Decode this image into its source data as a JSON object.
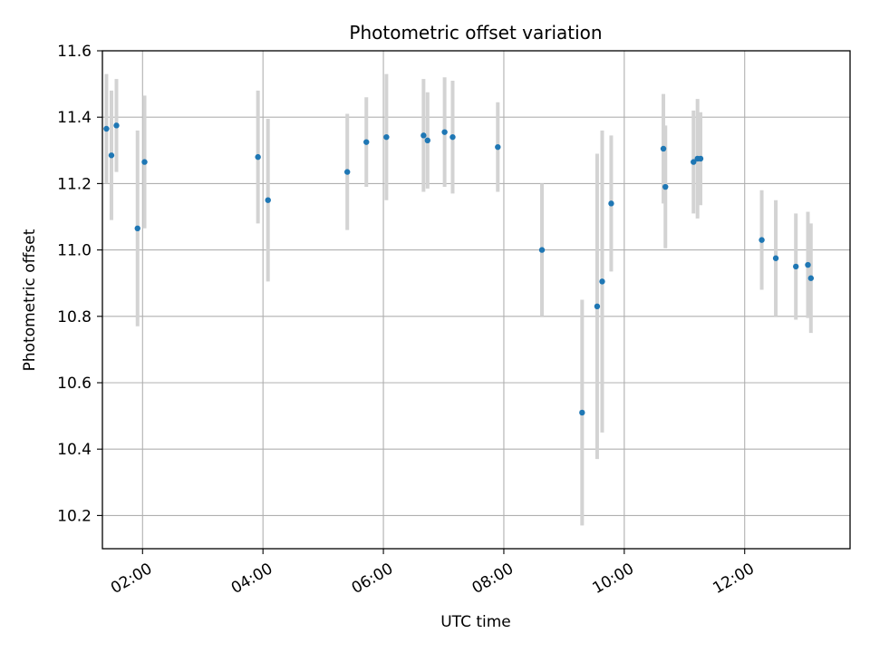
{
  "chart_data": {
    "type": "scatter",
    "title": "Photometric offset variation",
    "xlabel": "UTC time",
    "ylabel": "Photometric offset",
    "x_axis": "time",
    "xlim": [
      "01:20",
      "13:45"
    ],
    "ylim": [
      10.1,
      11.6
    ],
    "x_ticks": [
      "02:00",
      "04:00",
      "06:00",
      "08:00",
      "10:00",
      "12:00"
    ],
    "y_ticks": [
      10.2,
      10.4,
      10.6,
      10.8,
      11.0,
      11.2,
      11.4,
      11.6
    ],
    "y_tick_labels": [
      "10.2",
      "10.4",
      "10.6",
      "10.8",
      "11.0",
      "11.2",
      "11.4",
      "11.6"
    ],
    "grid": true,
    "point_color": "#1f77b4",
    "errorbar_color": "#d3d3d3",
    "points": [
      {
        "t": "01:24",
        "y": 11.365,
        "yerr": 0.165
      },
      {
        "t": "01:29",
        "y": 11.285,
        "yerr": 0.195
      },
      {
        "t": "01:34",
        "y": 11.375,
        "yerr": 0.14
      },
      {
        "t": "01:55",
        "y": 11.065,
        "yerr": 0.295
      },
      {
        "t": "02:02",
        "y": 11.265,
        "yerr": 0.2
      },
      {
        "t": "03:55",
        "y": 11.28,
        "yerr": 0.2
      },
      {
        "t": "04:05",
        "y": 11.15,
        "yerr": 0.245
      },
      {
        "t": "05:24",
        "y": 11.235,
        "yerr": 0.175
      },
      {
        "t": "05:43",
        "y": 11.325,
        "yerr": 0.135
      },
      {
        "t": "06:03",
        "y": 11.34,
        "yerr": 0.19
      },
      {
        "t": "06:40",
        "y": 11.345,
        "yerr": 0.17
      },
      {
        "t": "06:44",
        "y": 11.33,
        "yerr": 0.145
      },
      {
        "t": "07:01",
        "y": 11.355,
        "yerr": 0.165
      },
      {
        "t": "07:09",
        "y": 11.34,
        "yerr": 0.17
      },
      {
        "t": "07:54",
        "y": 11.31,
        "yerr": 0.135
      },
      {
        "t": "08:38",
        "y": 11.0,
        "yerr": 0.2
      },
      {
        "t": "09:18",
        "y": 10.51,
        "yerr": 0.34
      },
      {
        "t": "09:33",
        "y": 10.83,
        "yerr": 0.46
      },
      {
        "t": "09:38",
        "y": 10.905,
        "yerr": 0.455
      },
      {
        "t": "09:47",
        "y": 11.14,
        "yerr": 0.205
      },
      {
        "t": "10:39",
        "y": 11.305,
        "yerr": 0.165
      },
      {
        "t": "10:41",
        "y": 11.19,
        "yerr": 0.185
      },
      {
        "t": "11:09",
        "y": 11.265,
        "yerr": 0.155
      },
      {
        "t": "11:13",
        "y": 11.275,
        "yerr": 0.18
      },
      {
        "t": "11:16",
        "y": 11.275,
        "yerr": 0.14
      },
      {
        "t": "12:17",
        "y": 11.03,
        "yerr": 0.15
      },
      {
        "t": "12:31",
        "y": 10.975,
        "yerr": 0.175
      },
      {
        "t": "12:51",
        "y": 10.95,
        "yerr": 0.16
      },
      {
        "t": "13:03",
        "y": 10.955,
        "yerr": 0.16
      },
      {
        "t": "13:06",
        "y": 10.915,
        "yerr": 0.165
      }
    ]
  }
}
